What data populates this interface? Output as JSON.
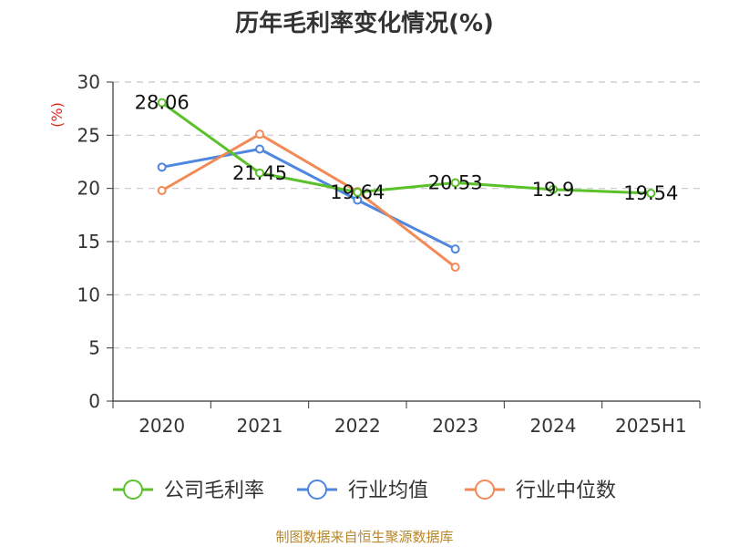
{
  "chart_data": {
    "type": "line",
    "title": "历年毛利率变化情况(%)",
    "ylabel": "(%)",
    "xlabel": "",
    "categories": [
      "2020",
      "2021",
      "2022",
      "2023",
      "2024",
      "2025H1"
    ],
    "ylim": [
      0,
      30
    ],
    "yticks": [
      0,
      5,
      10,
      15,
      20,
      25,
      30
    ],
    "grid": true,
    "legend_position": "bottom",
    "series": [
      {
        "name": "公司毛利率",
        "color": "#5bc12b",
        "values": [
          28.06,
          21.45,
          19.64,
          20.53,
          19.9,
          19.54
        ],
        "labels": [
          "28.06",
          "21.45",
          "19.64",
          "20.53",
          "19.9",
          "19.54"
        ]
      },
      {
        "name": "行业均值",
        "color": "#4f86df",
        "values": [
          22.0,
          23.7,
          18.9,
          14.3,
          null,
          null
        ]
      },
      {
        "name": "行业中位数",
        "color": "#f28a57",
        "values": [
          19.8,
          25.1,
          19.7,
          12.6,
          null,
          null
        ]
      }
    ]
  },
  "source_text": "制图数据来自恒生聚源数据库"
}
